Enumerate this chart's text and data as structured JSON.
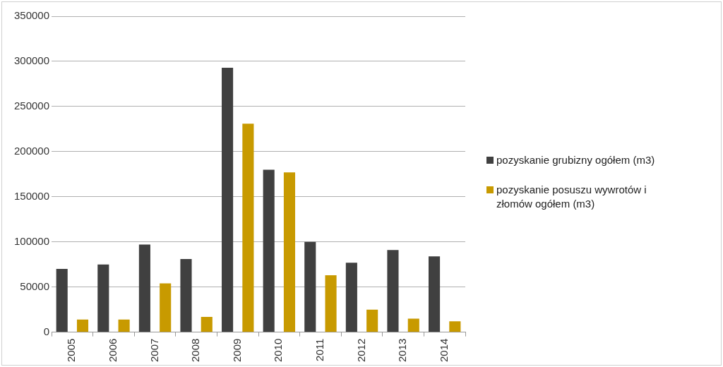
{
  "chart_data": {
    "type": "bar",
    "categories": [
      "2005",
      "2006",
      "2007",
      "2008",
      "2009",
      "2010",
      "2011",
      "2012",
      "2013",
      "2014"
    ],
    "series": [
      {
        "name": "pozyskanie grubizny ogółem (m3)",
        "color": "#404040",
        "values": [
          70000,
          75000,
          97000,
          81000,
          293000,
          180000,
          100000,
          77000,
          91000,
          84000
        ]
      },
      {
        "name": "pozyskanie posuszu wywrotów i złomów ogółem (m3)",
        "color": "#c89a00",
        "values": [
          14000,
          14000,
          54000,
          17000,
          231000,
          177000,
          63000,
          25000,
          15000,
          12000
        ]
      }
    ],
    "ylim": [
      0,
      350000
    ],
    "yticks": [
      0,
      50000,
      100000,
      150000,
      200000,
      250000,
      300000,
      350000
    ],
    "grid": "y",
    "legend": "right"
  }
}
